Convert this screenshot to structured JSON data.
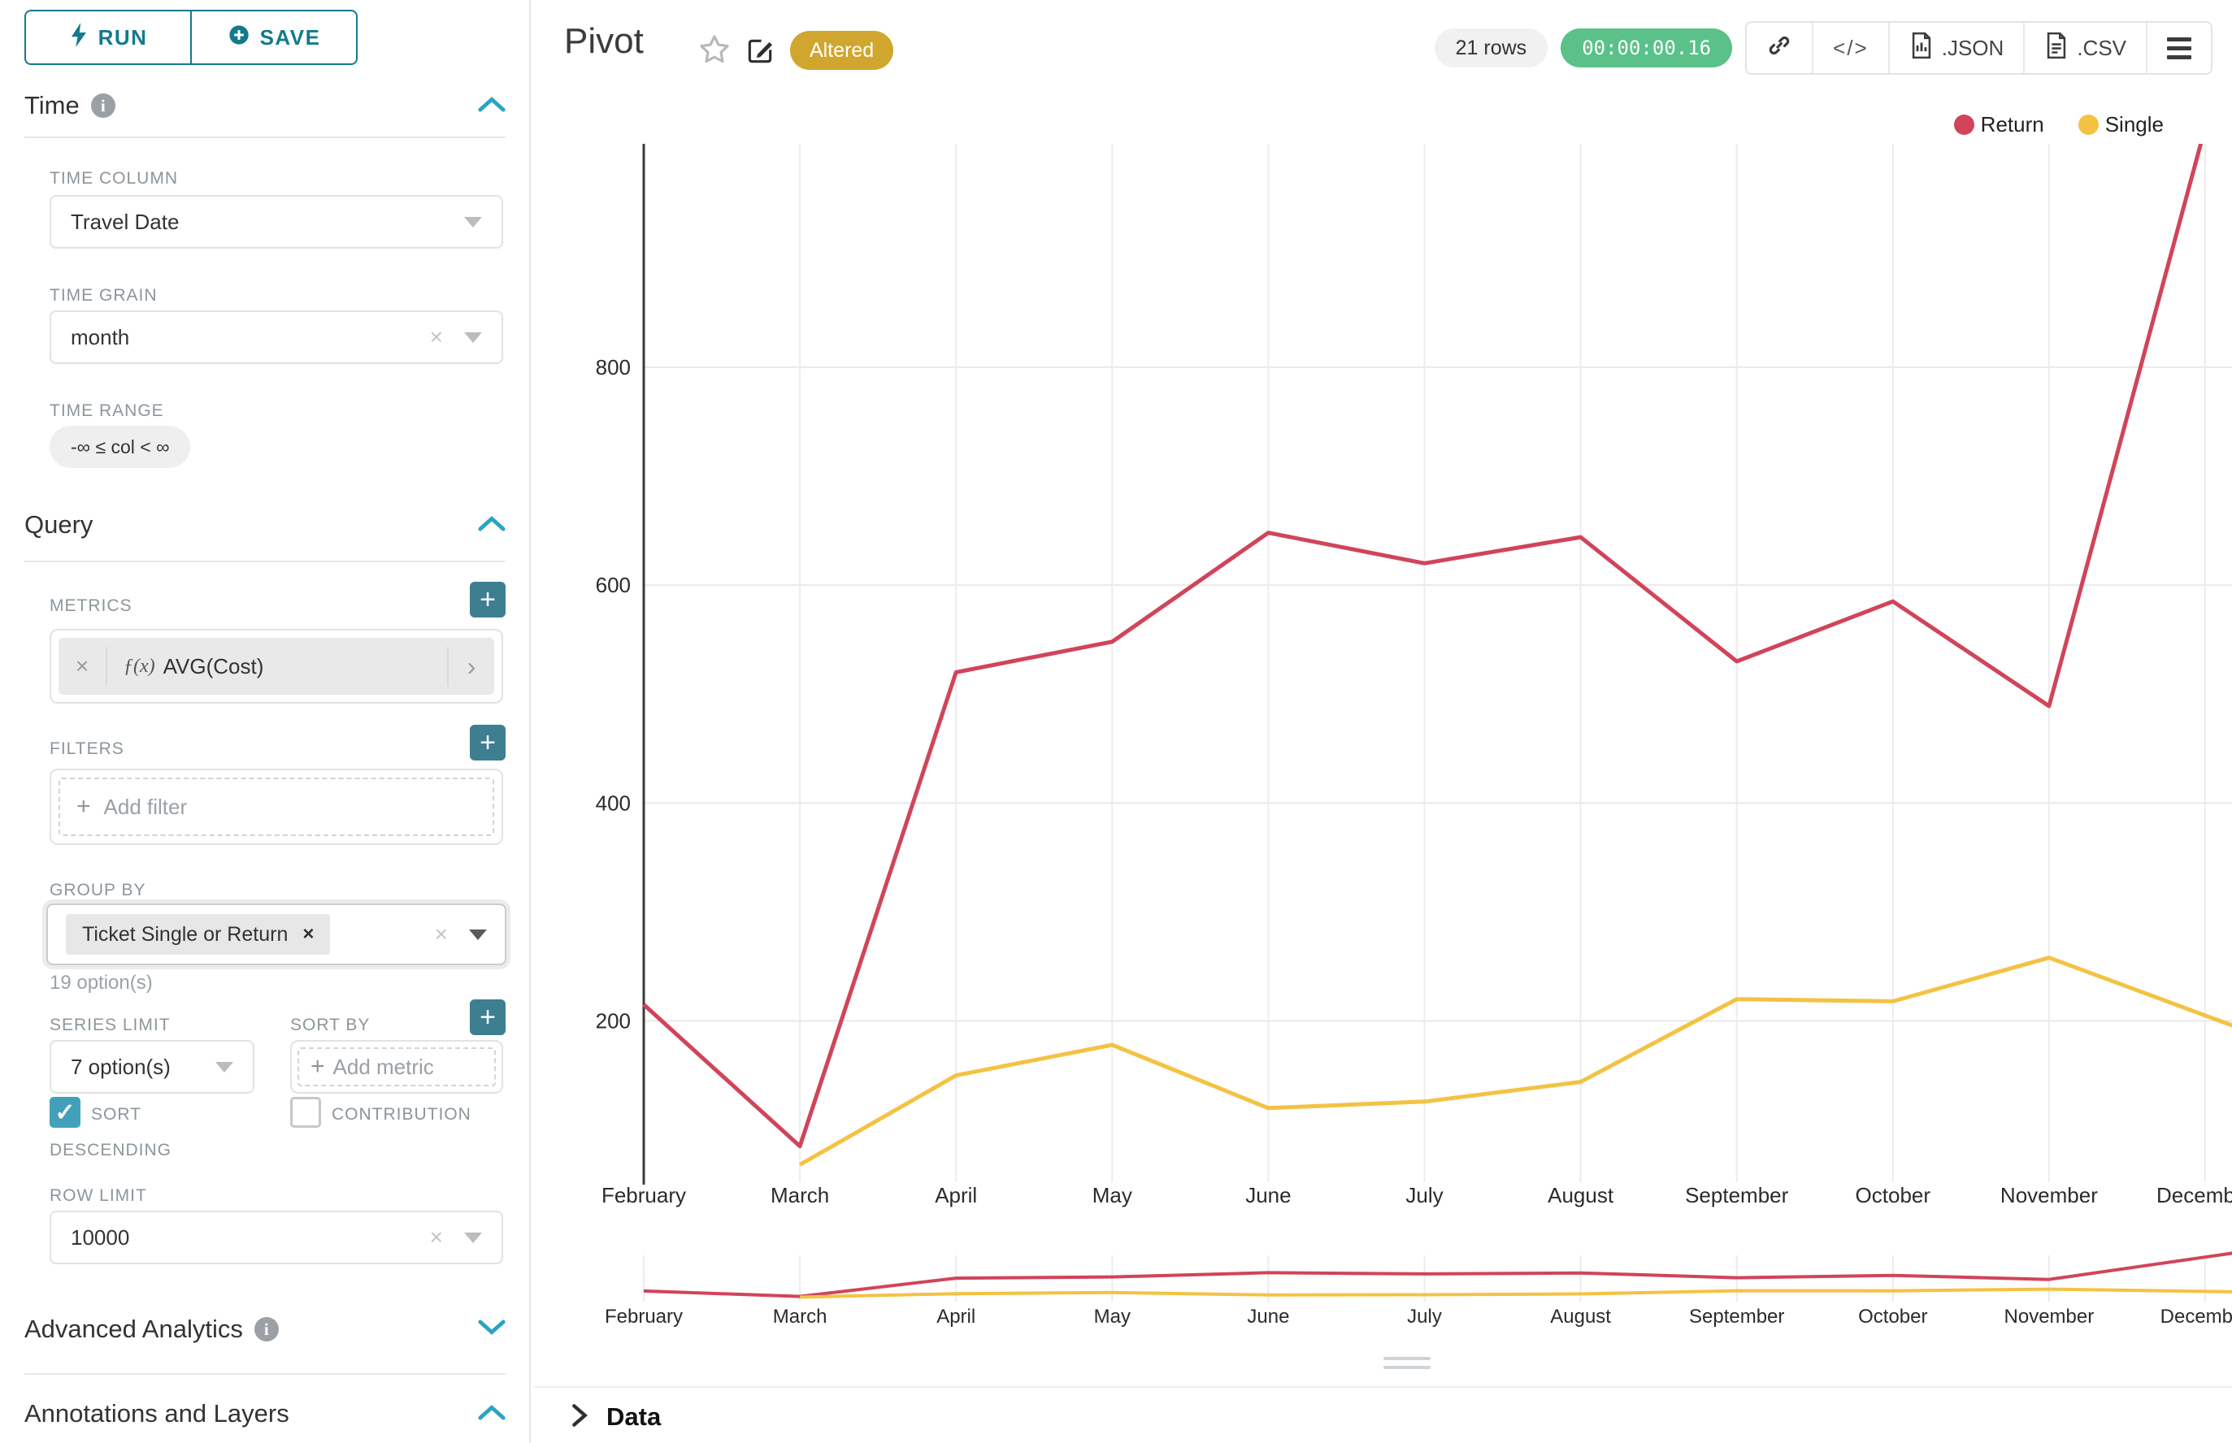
{
  "toolbar": {
    "run_label": "RUN",
    "save_label": "SAVE"
  },
  "sidebar": {
    "sections": {
      "time": "Time",
      "query": "Query",
      "advanced": "Advanced Analytics",
      "annotations": "Annotations and Layers"
    },
    "time_column": {
      "label": "TIME COLUMN",
      "value": "Travel Date"
    },
    "time_grain": {
      "label": "TIME GRAIN",
      "value": "month"
    },
    "time_range": {
      "label": "TIME RANGE",
      "value": "-∞ ≤ col < ∞"
    },
    "metrics": {
      "label": "METRICS",
      "fx": "ƒ(x)",
      "value": "AVG(Cost)"
    },
    "filters": {
      "label": "FILTERS",
      "placeholder": "Add filter"
    },
    "groupby": {
      "label": "GROUP BY",
      "tag": "Ticket Single or Return",
      "hint": "19 option(s)"
    },
    "series_limit": {
      "label": "SERIES LIMIT",
      "value": "7 option(s)"
    },
    "sort_by": {
      "label": "SORT BY",
      "placeholder": "Add metric"
    },
    "sort_descending_1": "SORT",
    "sort_descending_2": "DESCENDING",
    "contribution_label": "CONTRIBUTION",
    "row_limit": {
      "label": "ROW LIMIT",
      "value": "10000"
    }
  },
  "header": {
    "title": "Pivot",
    "altered_badge": "Altered",
    "row_count": "21 rows",
    "timer": "00:00:00.16",
    "code_glyph": "</>",
    "export_json": ".JSON",
    "export_csv": ".CSV"
  },
  "data_panel": {
    "title": "Data"
  },
  "chart_data": {
    "type": "line",
    "categories": [
      "February",
      "March",
      "April",
      "May",
      "June",
      "July",
      "August",
      "September",
      "October",
      "November",
      "December"
    ],
    "series": [
      {
        "name": "Return",
        "color": "#d14459",
        "values": [
          215,
          85,
          520,
          548,
          648,
          620,
          644,
          530,
          585,
          489,
          1020
        ]
      },
      {
        "name": "Single",
        "color": "#f4c243",
        "values": [
          null,
          68,
          150,
          178,
          120,
          126,
          144,
          220,
          218,
          258,
          205
        ]
      }
    ],
    "title": "",
    "xlabel": "",
    "ylabel": "",
    "yticks": [
      200,
      400,
      600,
      800
    ],
    "ylim": [
      52,
      1005
    ],
    "grid": true,
    "legend_position": "top-right",
    "has_mini_range_chart": true
  }
}
